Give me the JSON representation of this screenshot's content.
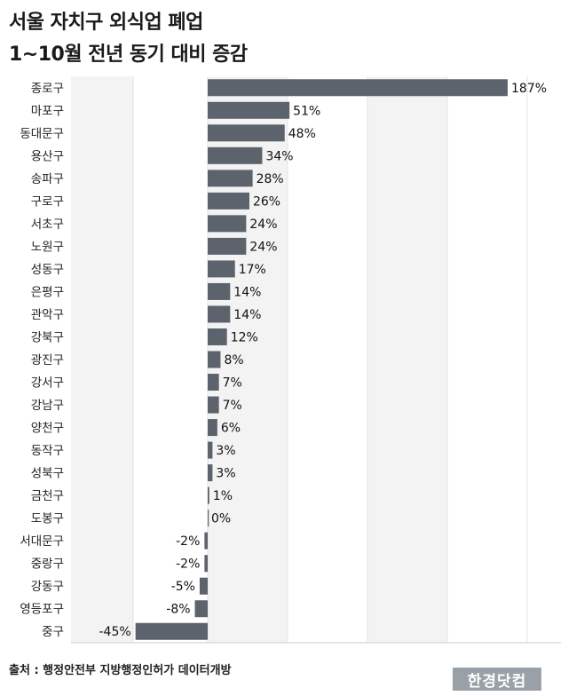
{
  "header": {
    "title_line1": "서울 자치구 외식업 폐업",
    "title_line2": "1~10월 전년 동기 대비 증감"
  },
  "footer": {
    "source": "출처 : 행정안전부 지방행정인허가 데이터개방",
    "logo": "한경닷컴"
  },
  "colors": {
    "bar": "#5c636c",
    "grid": "#e3e3e3",
    "band": "#f3f3f3"
  },
  "chart_data": {
    "type": "bar",
    "orientation": "horizontal",
    "title": "서울 자치구 외식업 폐업",
    "subtitle": "1~10월 전년 동기 대비 증감",
    "unit": "%",
    "categories": [
      "종로구",
      "마포구",
      "동대문구",
      "용산구",
      "송파구",
      "구로구",
      "서초구",
      "노원구",
      "성동구",
      "은평구",
      "관악구",
      "강북구",
      "광진구",
      "강서구",
      "강남구",
      "양천구",
      "동작구",
      "성북구",
      "금천구",
      "도봉구",
      "서대문구",
      "중랑구",
      "강동구",
      "영등포구",
      "중구"
    ],
    "values": [
      187,
      51,
      48,
      34,
      28,
      26,
      24,
      24,
      17,
      14,
      14,
      12,
      8,
      7,
      7,
      6,
      3,
      3,
      1,
      0,
      -2,
      -2,
      -5,
      -8,
      -45
    ],
    "value_labels": [
      "187%",
      "51%",
      "48%",
      "34%",
      "28%",
      "26%",
      "24%",
      "24%",
      "17%",
      "14%",
      "14%",
      "12%",
      "8%",
      "7%",
      "7%",
      "6%",
      "3%",
      "3%",
      "1%",
      "0%",
      "-2%",
      "-2%",
      "-5%",
      "-8%",
      "-45%"
    ],
    "xlim": [
      -80,
      230
    ],
    "grid": true,
    "legend": "none"
  }
}
